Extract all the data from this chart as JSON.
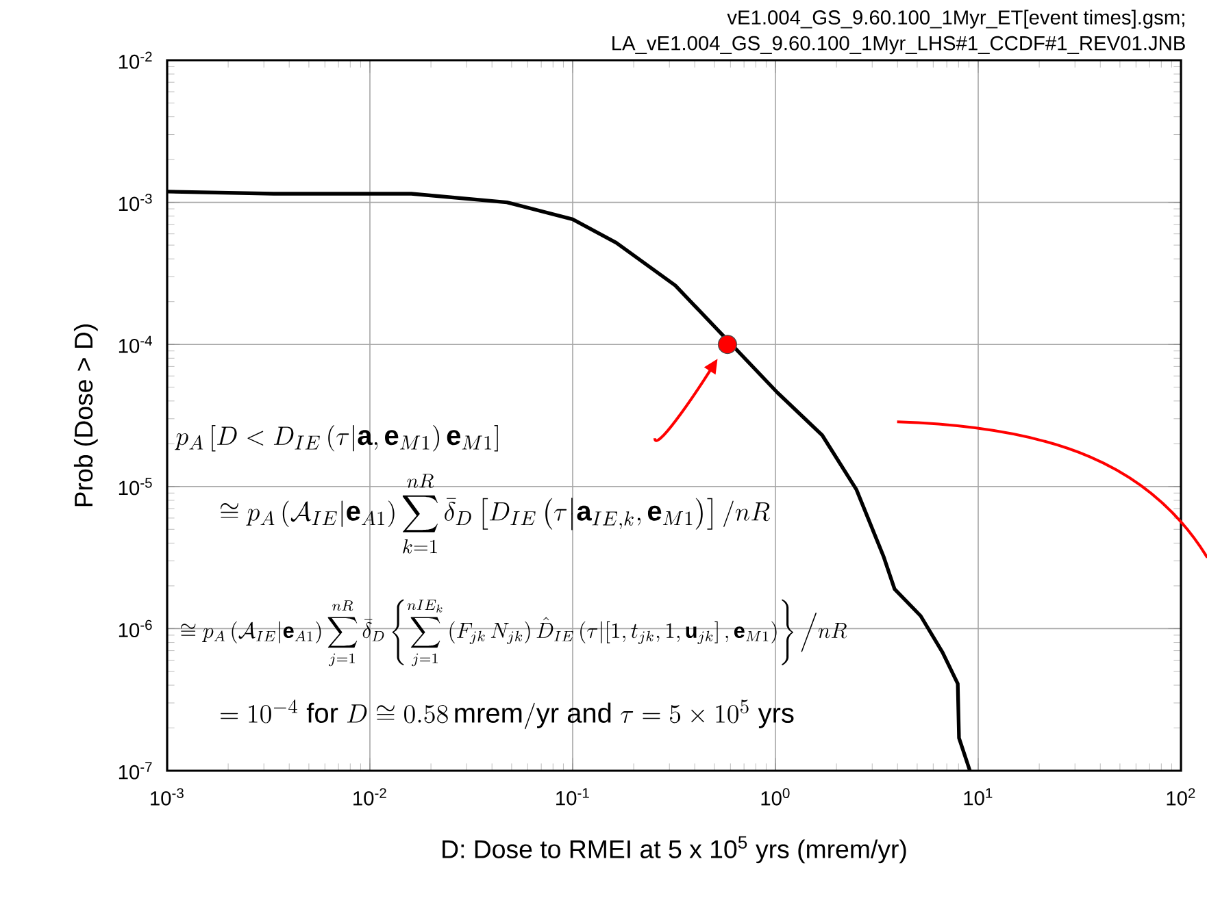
{
  "chart_data": {
    "type": "line",
    "xlabel": "D: Dose to RMEI at 5 x 10$^{5}$ yrs (mrem/yr)",
    "ylabel": "Prob (Dose > D)",
    "log": "xy",
    "xlim": [
      0.001,
      100
    ],
    "ylim": [
      1e-07,
      0.01
    ],
    "xticks": [
      {
        "value": 0.001,
        "label": "10$^{-3}$"
      },
      {
        "value": 0.01,
        "label": "10$^{-2}$"
      },
      {
        "value": 0.1,
        "label": "10$^{-1}$"
      },
      {
        "value": 1,
        "label": "10$^{0}$"
      },
      {
        "value": 10,
        "label": "10$^{1}$"
      },
      {
        "value": 100,
        "label": "10$^{2}$"
      }
    ],
    "yticks": [
      {
        "value": 1e-07,
        "label": "10$^{-7}$"
      },
      {
        "value": 1e-06,
        "label": "10$^{-6}$"
      },
      {
        "value": 1e-05,
        "label": "10$^{-5}$"
      },
      {
        "value": 0.0001,
        "label": "10$^{-4}$"
      },
      {
        "value": 0.001,
        "label": "10$^{-3}$"
      },
      {
        "value": 0.01,
        "label": "10$^{-2}$"
      }
    ],
    "grid": true,
    "series": [
      {
        "color": "#000000",
        "line_style": "solid",
        "x": [
          0.001,
          0.00336,
          0.016,
          0.0474,
          0.1,
          0.164,
          0.321,
          1.02,
          1.7,
          2.51,
          3.42,
          3.87,
          5.2,
          6.67,
          7.93,
          8.04,
          9.1
        ],
        "values": [
          0.00119,
          0.00115,
          0.00115,
          0.001,
          0.00076,
          0.00052,
          0.00026,
          4.6e-05,
          2.3e-05,
          9.5e-06,
          3.2e-06,
          1.9e-06,
          1.23e-06,
          6.8e-07,
          4.1e-07,
          1.7e-07,
          1e-07
        ]
      },
      {
        "type": "scatter",
        "color": "#ff0000",
        "marker": "circle",
        "x": [
          0.58
        ],
        "values": [
          0.0001
        ]
      }
    ],
    "annotations": [
      "vE1.004_GS_9.60.100_1Myr_ET[event times].gsm;",
      "LA_vE1.004_GS_9.60.100_1Myr_LHS#1_CCDF#1_REV01.JNB",
      "p_A\\left[D<D_{IE}\\left(\\tau\\middle|\\mathbf{a},\\mathbf{e}_{M1}\\right)\\mathbf{e}_{M1}\\right]",
      "\\cong p_A\\left(\\mathcal{A}_{IE}\\middle|\\mathbf{e}_{A1}\\right)\\sum_{k=1}^{nR}\\bar{\\delta}_D\\left[D_{IE}\\left(\\tau\\middle|\\mathbf{a}_{IE,k},\\mathbf{e}_{M1}\\right)\\right]/nR",
      "\\cong p_A\\left(\\mathcal{A}_{IE}\\middle|\\mathbf{e}_{A1}\\right)\\sum_{j=1}^{nR}\\bar{\\delta}_D\\left\\{\\sum_{j=1}^{nIE_k}\\left(F_{jk}\\,N_{jk}\\right)\\hat{D}_{IE}\\left(\\tau\\middle|\\left[1,t_{jk},1,\\mathbf{u}_{jk}\\right],\\mathbf{e}_{M1}\\right)\\right\\}\\Big/nR",
      "=10^{-4}\\ \\mathrm{for}\\ D\\cong 0.58\\,\\mathrm{mrem/yr}\\ \\mathrm{and}\\ \\tau=5\\times 10^{5}\\ \\mathrm{yrs}"
    ]
  }
}
